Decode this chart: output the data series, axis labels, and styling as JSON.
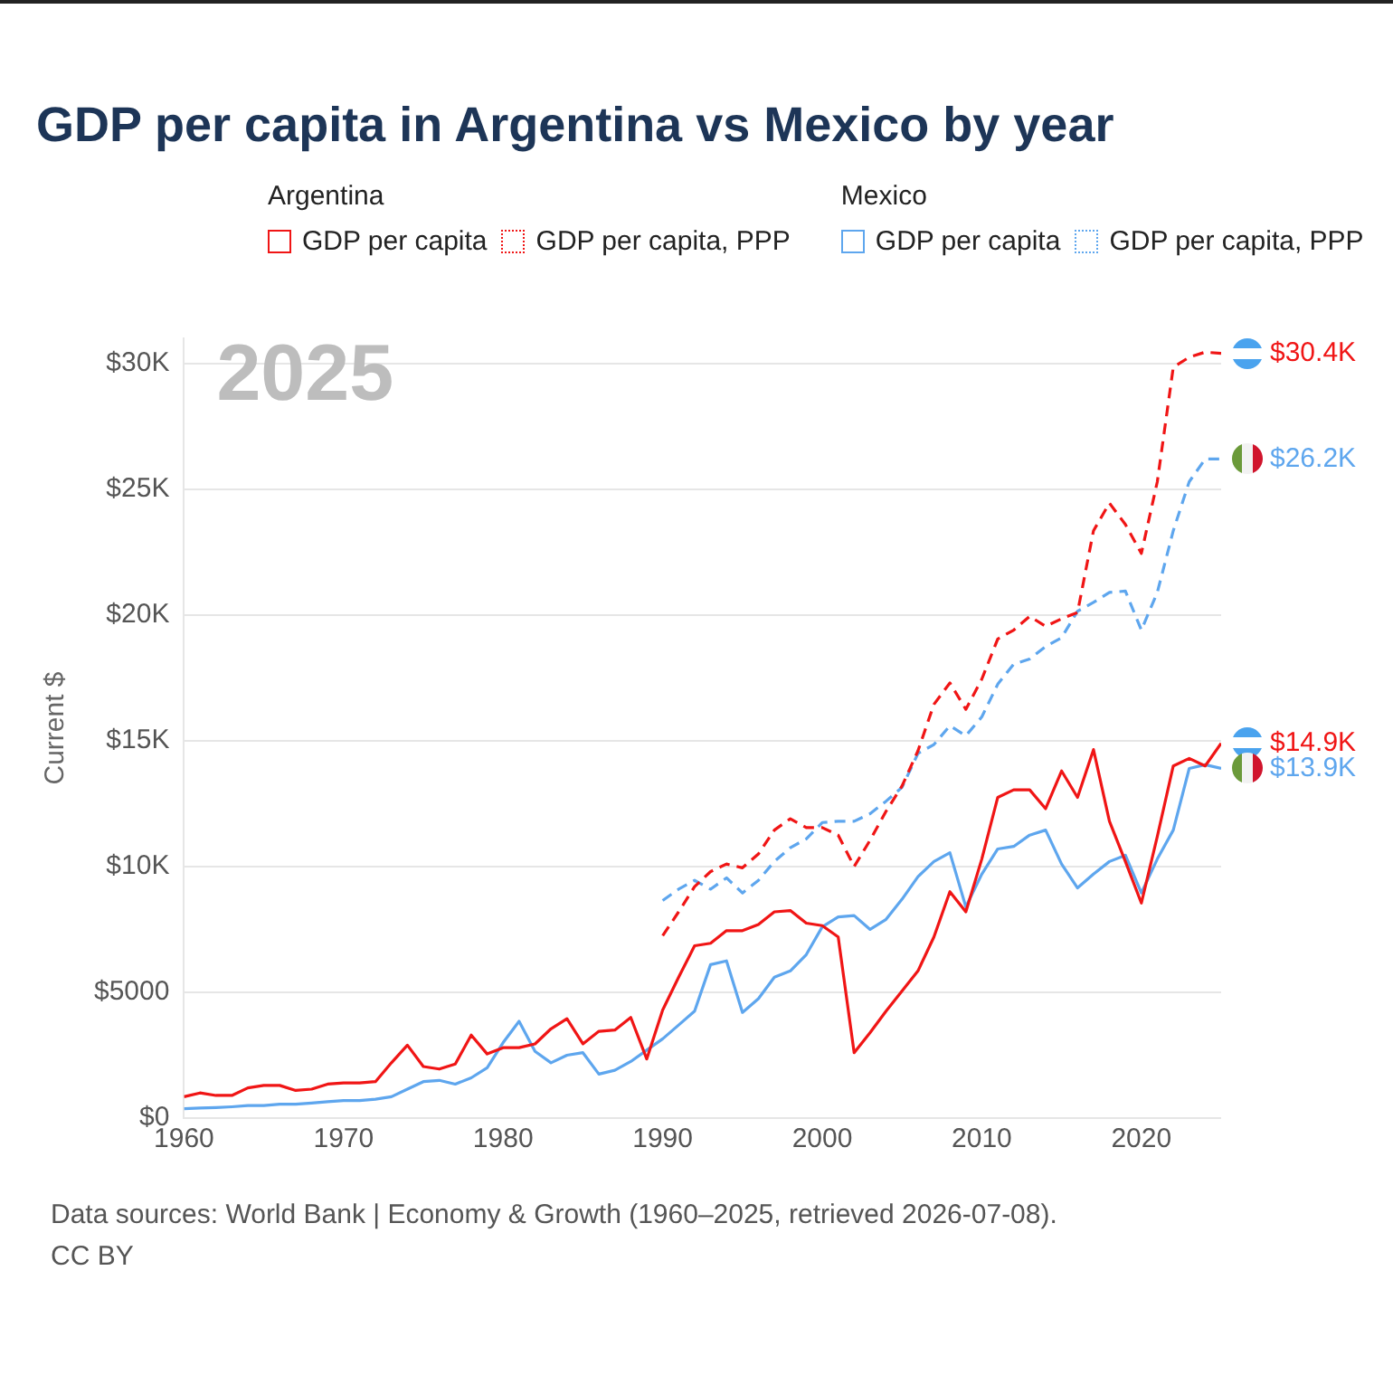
{
  "chart_data": {
    "type": "line",
    "title": "GDP per capita in Argentina vs Mexico by year",
    "ylabel": "Current $",
    "annotations": [
      "Argentina",
      "Mexico",
      "2025",
      "Data sources: World Bank | Economy & Growth (1960–2025, retrieved 2026-07-08).",
      "CC BY"
    ],
    "x": [
      1960,
      1961,
      1962,
      1963,
      1964,
      1965,
      1966,
      1967,
      1968,
      1969,
      1970,
      1971,
      1972,
      1973,
      1974,
      1975,
      1976,
      1977,
      1978,
      1979,
      1980,
      1981,
      1982,
      1983,
      1984,
      1985,
      1986,
      1987,
      1988,
      1989,
      1990,
      1991,
      1992,
      1993,
      1994,
      1995,
      1996,
      1997,
      1998,
      1999,
      2000,
      2001,
      2002,
      2003,
      2004,
      2005,
      2006,
      2007,
      2008,
      2009,
      2010,
      2011,
      2012,
      2013,
      2014,
      2015,
      2016,
      2017,
      2018,
      2019,
      2020,
      2021,
      2022,
      2023,
      2024,
      2025
    ],
    "series": [
      {
        "name": "GDP per capita",
        "color": "#f01515",
        "line_style": "solid",
        "values": [
          850,
          1000,
          900,
          900,
          1200,
          1300,
          1300,
          1100,
          1150,
          1350,
          1400,
          1400,
          1450,
          2200,
          2900,
          2050,
          1950,
          2150,
          3300,
          2550,
          2800,
          2800,
          2950,
          3550,
          3950,
          2950,
          3450,
          3500,
          4000,
          2350,
          4300,
          5600,
          6850,
          6950,
          7450,
          7450,
          7700,
          8200,
          8250,
          7750,
          7650,
          7200,
          2600,
          3400,
          4250,
          5050,
          5850,
          7200,
          9000,
          8200,
          10300,
          12750,
          13050,
          13050,
          12300,
          13800,
          12750,
          14650,
          11800,
          10200,
          8550,
          11200,
          14000,
          14300,
          14000,
          14900
        ],
        "value_labels": [
          null,
          null,
          null,
          null,
          null,
          null,
          null,
          null,
          null,
          null,
          null,
          null,
          null,
          null,
          null,
          null,
          null,
          null,
          null,
          null,
          null,
          null,
          null,
          null,
          null,
          null,
          null,
          null,
          null,
          null,
          null,
          null,
          null,
          null,
          null,
          null,
          null,
          null,
          null,
          null,
          null,
          null,
          null,
          null,
          null,
          null,
          null,
          null,
          null,
          null,
          null,
          null,
          null,
          null,
          null,
          null,
          null,
          null,
          null,
          null,
          null,
          null,
          null,
          null,
          null,
          "$14.9K"
        ]
      },
      {
        "name": "GDP per capita, PPP",
        "color": "#f01515",
        "line_style": "dashed",
        "x": [
          1990,
          1991,
          1992,
          1993,
          1994,
          1995,
          1996,
          1997,
          1998,
          1999,
          2000,
          2001,
          2002,
          2003,
          2004,
          2005,
          2006,
          2007,
          2008,
          2009,
          2010,
          2011,
          2012,
          2013,
          2014,
          2015,
          2016,
          2017,
          2018,
          2019,
          2020,
          2021,
          2022,
          2023,
          2024,
          2025
        ],
        "values": [
          7250,
          8200,
          9200,
          9800,
          10100,
          9950,
          10500,
          11450,
          11900,
          11550,
          11550,
          11250,
          10000,
          11050,
          12200,
          13200,
          14600,
          16450,
          17300,
          16250,
          17450,
          19050,
          19400,
          19950,
          19550,
          19850,
          20100,
          23350,
          24450,
          23600,
          22450,
          25300,
          29850,
          30250,
          30450,
          30400
        ],
        "value_labels": [
          null,
          null,
          null,
          null,
          null,
          null,
          null,
          null,
          null,
          null,
          null,
          null,
          null,
          null,
          null,
          null,
          null,
          null,
          null,
          null,
          null,
          null,
          null,
          null,
          null,
          null,
          null,
          null,
          null,
          null,
          null,
          null,
          null,
          null,
          null,
          "$30.4K"
        ]
      },
      {
        "name": "GDP per capita",
        "color": "#5ea6ee",
        "line_style": "solid",
        "values": [
          370,
          400,
          420,
          450,
          500,
          500,
          550,
          550,
          600,
          650,
          700,
          700,
          750,
          850,
          1150,
          1450,
          1500,
          1350,
          1600,
          2000,
          3000,
          3850,
          2650,
          2200,
          2500,
          2600,
          1750,
          1900,
          2250,
          2700,
          3150,
          3700,
          4250,
          6100,
          6250,
          4200,
          4750,
          5600,
          5850,
          6500,
          7600,
          8000,
          8050,
          7500,
          7900,
          8700,
          9600,
          10200,
          10550,
          8400,
          9700,
          10700,
          10800,
          11250,
          11450,
          10100,
          9150,
          9700,
          10200,
          10450,
          8950,
          10300,
          11450,
          13900,
          14050,
          13900
        ],
        "value_labels": [
          null,
          null,
          null,
          null,
          null,
          null,
          null,
          null,
          null,
          null,
          null,
          null,
          null,
          null,
          null,
          null,
          null,
          null,
          null,
          null,
          null,
          null,
          null,
          null,
          null,
          null,
          null,
          null,
          null,
          null,
          null,
          null,
          null,
          null,
          null,
          null,
          null,
          null,
          null,
          null,
          null,
          null,
          null,
          null,
          null,
          null,
          null,
          null,
          null,
          null,
          null,
          null,
          null,
          null,
          null,
          null,
          null,
          null,
          null,
          null,
          null,
          null,
          null,
          null,
          null,
          "$13.9K"
        ]
      },
      {
        "name": "GDP per capita, PPP",
        "color": "#5ea6ee",
        "line_style": "dashed",
        "x": [
          1990,
          1991,
          1992,
          1993,
          1994,
          1995,
          1996,
          1997,
          1998,
          1999,
          2000,
          2001,
          2002,
          2003,
          2004,
          2005,
          2006,
          2007,
          2008,
          2009,
          2010,
          2011,
          2012,
          2013,
          2014,
          2015,
          2016,
          2017,
          2018,
          2019,
          2020,
          2021,
          2022,
          2023,
          2024,
          2025
        ],
        "values": [
          8650,
          9100,
          9450,
          9100,
          9550,
          8950,
          9450,
          10200,
          10750,
          11100,
          11750,
          11800,
          11800,
          12100,
          12600,
          13150,
          14500,
          14850,
          15600,
          15200,
          15950,
          17250,
          18050,
          18250,
          18750,
          19100,
          20150,
          20500,
          20900,
          20950,
          19400,
          20900,
          23350,
          25300,
          26200,
          26200
        ],
        "value_labels": [
          null,
          null,
          null,
          null,
          null,
          null,
          null,
          null,
          null,
          null,
          null,
          null,
          null,
          null,
          null,
          null,
          null,
          null,
          null,
          null,
          null,
          null,
          null,
          null,
          null,
          null,
          null,
          null,
          null,
          null,
          null,
          null,
          null,
          null,
          null,
          "$26.2K"
        ]
      }
    ],
    "xlim": [
      1960,
      2025
    ],
    "xticks": [
      1960,
      1970,
      1980,
      1990,
      2000,
      2010,
      2020
    ],
    "ylim": [
      0,
      31000
    ],
    "yticks": [
      {
        "value": 0,
        "label": "$0"
      },
      {
        "value": 5000,
        "label": "$5000"
      },
      {
        "value": 10000,
        "label": "$10K"
      },
      {
        "value": 15000,
        "label": "$15K"
      },
      {
        "value": 20000,
        "label": "$20K"
      },
      {
        "value": 25000,
        "label": "$25K"
      },
      {
        "value": 30000,
        "label": "$30K"
      }
    ],
    "grid": "y",
    "legend": "top",
    "marker": "none"
  }
}
